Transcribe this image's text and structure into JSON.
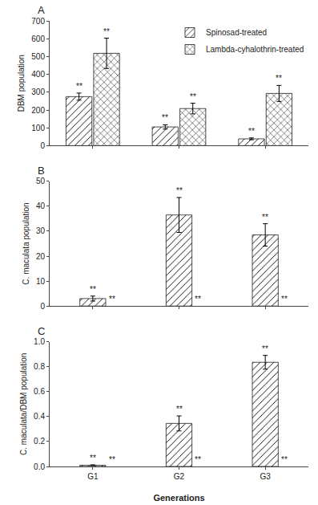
{
  "chart_data": [
    {
      "type": "bar",
      "title": "A",
      "ylabel": "DBM population",
      "categories": [
        "G1",
        "G2",
        "G3"
      ],
      "series": [
        {
          "name": "Spinosad-treated",
          "color": "#7f7f7f",
          "values": [
            275,
            105,
            38
          ],
          "errors": [
            20,
            12,
            5
          ]
        },
        {
          "name": "Lambda-cyhalothrin-treated",
          "color": "#d9d9d9",
          "values": [
            518,
            208,
            293
          ],
          "errors": [
            85,
            30,
            45
          ]
        }
      ],
      "ylim": [
        0,
        700
      ],
      "yticks": [
        0,
        100,
        200,
        300,
        400,
        500,
        600,
        700
      ],
      "grid": false,
      "legend": "upper right",
      "tick_labels": "y",
      "annotations": [
        {
          "text": "**",
          "category": "G1",
          "series": "Spinosad-treated"
        },
        {
          "text": "**",
          "category": "G2",
          "series": "Spinosad-treated"
        },
        {
          "text": "**",
          "category": "G3",
          "series": "Spinosad-treated"
        },
        {
          "text": "**",
          "category": "G1",
          "series": "Lambda-cyhalothrin-treated"
        },
        {
          "text": "**",
          "category": "G2",
          "series": "Lambda-cyhalothrin-treated"
        },
        {
          "text": "**",
          "category": "G3",
          "series": "Lambda-cyhalothrin-treated"
        }
      ]
    },
    {
      "type": "bar",
      "title": "B",
      "ylabel": "C. maculata population",
      "categories": [
        "G1",
        "G2",
        "G3"
      ],
      "series": [
        {
          "name": "Spinosad-treated",
          "color": "#7f7f7f",
          "values": [
            3.0,
            36.5,
            28.5
          ],
          "errors": [
            1.0,
            7.0,
            4.5
          ]
        }
      ],
      "ylim": [
        0,
        50
      ],
      "yticks": [
        0,
        10,
        20,
        30,
        40,
        50
      ],
      "grid": false,
      "tick_labels": "y",
      "annotations": [
        {
          "text": "**",
          "category": "G1",
          "series": "Spinosad-treated"
        },
        {
          "text": "**",
          "category": "G2",
          "series": "Spinosad-treated"
        },
        {
          "text": "**",
          "category": "G3",
          "series": "Spinosad-treated"
        },
        {
          "text": "**",
          "category": "G1",
          "series": "Lambda-cyhalothrin-treated"
        },
        {
          "text": "**",
          "category": "G2",
          "series": "Lambda-cyhalothrin-treated"
        },
        {
          "text": "**",
          "category": "G3",
          "series": "Lambda-cyhalothrin-treated"
        }
      ]
    },
    {
      "type": "bar",
      "title": "C",
      "ylabel": "C. maculata/DBM population",
      "xlabel": "Generations",
      "categories": [
        "G1",
        "G2",
        "G3"
      ],
      "series": [
        {
          "name": "Spinosad-treated",
          "color": "#7f7f7f",
          "values": [
            0.01,
            0.345,
            0.835
          ],
          "errors": [
            0.003,
            0.06,
            0.055
          ]
        }
      ],
      "ylim": [
        0,
        1.0
      ],
      "yticks": [
        {
          "value": 0,
          "label": "0.0"
        },
        0.2,
        0.4,
        0.6,
        0.8,
        {
          "value": 1.0,
          "label": "1.0"
        }
      ],
      "grid": false,
      "annotations": [
        {
          "text": "**",
          "category": "G1",
          "series": "Spinosad-treated"
        },
        {
          "text": "**",
          "category": "G2",
          "series": "Spinosad-treated"
        },
        {
          "text": "**",
          "category": "G3",
          "series": "Spinosad-treated"
        },
        {
          "text": "**",
          "category": "G1",
          "series": "Lambda-cyhalothrin-treated"
        },
        {
          "text": "**",
          "category": "G2",
          "series": "Lambda-cyhalothrin-treated"
        },
        {
          "text": "**",
          "category": "G3",
          "series": "Lambda-cyhalothrin-treated"
        }
      ]
    }
  ]
}
